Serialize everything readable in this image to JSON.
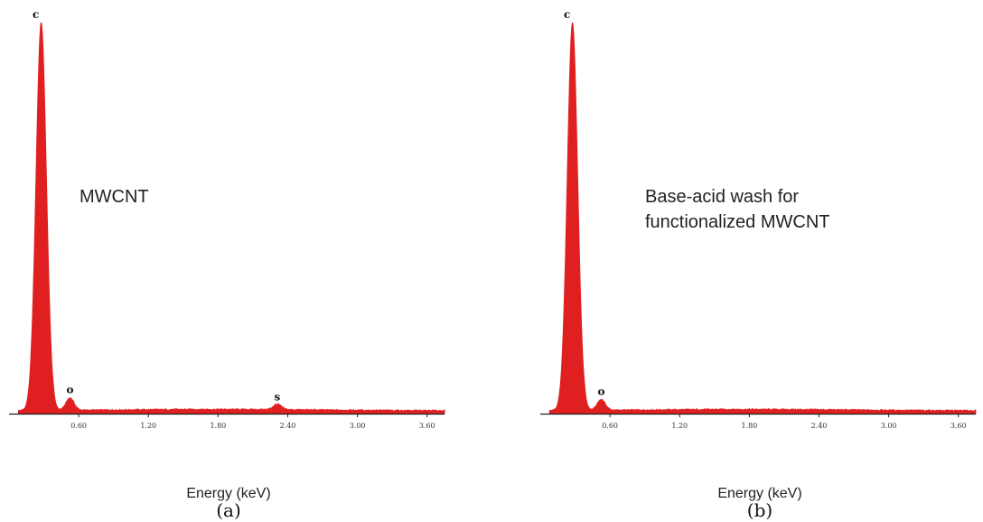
{
  "chart_data": [
    {
      "type": "area",
      "panel_label": "(a)",
      "xlabel": "Energy (keV)",
      "annotation_lines": [
        "MWCNT"
      ],
      "xlim": [
        0.0,
        3.75
      ],
      "ylim": [
        0,
        100
      ],
      "x_ticks": [
        0.6,
        1.2,
        1.8,
        2.4,
        3.0,
        3.6
      ],
      "x_tick_labels": [
        "0.60",
        "1.20",
        "1.80",
        "2.40",
        "3.00",
        "3.60"
      ],
      "peaks": [
        {
          "label": "C",
          "energy": 0.277,
          "intensity": 100
        },
        {
          "label": "O",
          "energy": 0.525,
          "intensity": 3.2
        },
        {
          "label": "S",
          "energy": 2.31,
          "intensity": 1.4
        }
      ],
      "series_color": "#e02020",
      "grid": false
    },
    {
      "type": "area",
      "panel_label": "(b)",
      "xlabel": "Energy (keV)",
      "annotation_lines": [
        "Base-acid wash for",
        "functionalized MWCNT"
      ],
      "xlim": [
        0.0,
        3.75
      ],
      "ylim": [
        0,
        100
      ],
      "x_ticks": [
        0.6,
        1.2,
        1.8,
        2.4,
        3.0,
        3.6
      ],
      "x_tick_labels": [
        "0.60",
        "1.20",
        "1.80",
        "2.40",
        "3.00",
        "3.60"
      ],
      "peaks": [
        {
          "label": "C",
          "energy": 0.277,
          "intensity": 100
        },
        {
          "label": "O",
          "energy": 0.525,
          "intensity": 2.8
        }
      ],
      "series_color": "#e02020",
      "grid": false
    }
  ]
}
